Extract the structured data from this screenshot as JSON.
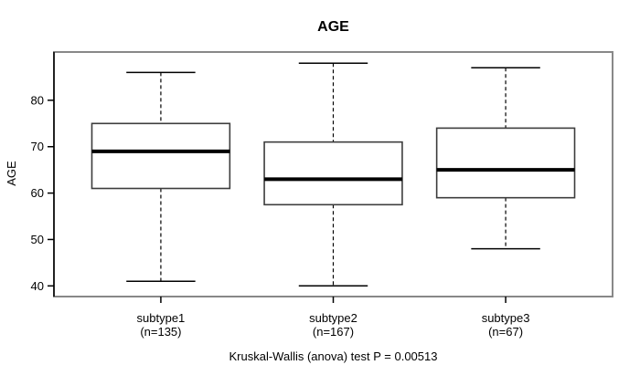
{
  "chart_data": {
    "type": "boxplot",
    "title": "AGE",
    "ylabel": "AGE",
    "xlabel": "",
    "caption": "Kruskal-Wallis (anova) test P = 0.00513",
    "ylim": [
      37.7,
      90.4
    ],
    "yticks": [
      40,
      50,
      60,
      70,
      80
    ],
    "grid": false,
    "legend": "none",
    "groups": [
      {
        "label": "subtype1",
        "sublabel": "(n=135)",
        "n": 135,
        "whisker_low": 41,
        "q1": 61,
        "median": 69,
        "q3": 75,
        "whisker_high": 86
      },
      {
        "label": "subtype2",
        "sublabel": "(n=167)",
        "n": 167,
        "whisker_low": 40,
        "q1": 57.5,
        "median": 63,
        "q3": 71,
        "whisker_high": 88
      },
      {
        "label": "subtype3",
        "sublabel": "(n=67)",
        "n": 67,
        "whisker_low": 48,
        "q1": 59,
        "median": 65,
        "q3": 74,
        "whisker_high": 87
      }
    ],
    "colors": {
      "frame": "#888888",
      "box_border": "#3d3d3d",
      "whisker_line": "#000000",
      "median_line": "#000000",
      "box_fill": "#ffffff",
      "text": "#000000"
    }
  }
}
